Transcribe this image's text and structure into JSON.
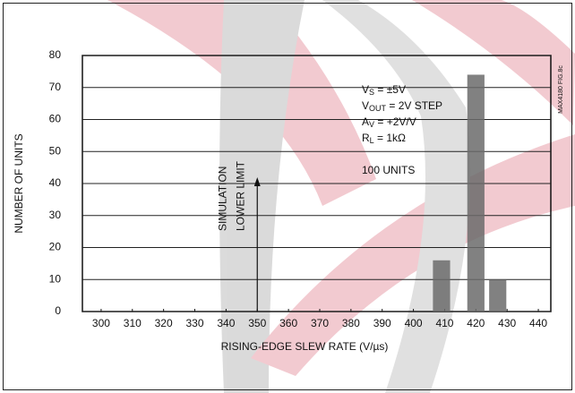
{
  "chart_data": {
    "type": "bar",
    "x": [
      409,
      420,
      427
    ],
    "values": [
      16,
      74,
      10
    ],
    "color": "#6b6b6b",
    "xlim": [
      294,
      444
    ],
    "xticks": [
      300,
      310,
      320,
      330,
      340,
      350,
      360,
      370,
      380,
      390,
      400,
      410,
      420,
      430,
      440
    ],
    "ylim": [
      0,
      80
    ],
    "yticks": [
      0,
      10,
      20,
      30,
      40,
      50,
      60,
      70,
      80
    ],
    "grid": true,
    "x_label": "RISING-EDGE SLEW RATE (V/µs)",
    "y_label": "NUMBER OF UNITS",
    "annotations": [
      {
        "main": "V",
        "sub": "S",
        "tail": " = ±5V"
      },
      {
        "main": "V",
        "sub": "OUT",
        "tail": " = 2V STEP"
      },
      {
        "main": "A",
        "sub": "V",
        "tail": " = +2V/V"
      },
      {
        "main": "R",
        "sub": "L",
        "tail": " = 1kΩ"
      }
    ],
    "units_note": "100 UNITS",
    "reference_line": {
      "x": 350,
      "label": [
        "SIMULATION",
        "LOWER LIMIT"
      ]
    },
    "figure_id": "MAX4180 FIG.8c"
  }
}
